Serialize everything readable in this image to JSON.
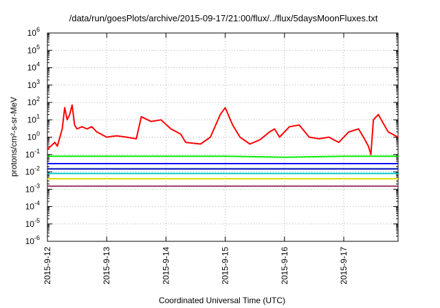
{
  "chart_data": {
    "type": "line",
    "title": "/data/run/goesPlots/archive/2015-09-17/21:00/flux/../flux/5daysMoonFluxes.txt",
    "xlabel": "Coordinated Universal Time (UTC)",
    "ylabel": "protons/cm²-s-sr-MeV",
    "y_scale": "log",
    "ylim": [
      1e-06,
      1000000.0
    ],
    "xlim": [
      "2015-09-12",
      "2015-09-17 22:00"
    ],
    "grid": true,
    "legend": "none",
    "y_ticks": [
      {
        "base": "10",
        "exp": "-6",
        "value": 1e-06
      },
      {
        "base": "10",
        "exp": "-5",
        "value": 1e-05
      },
      {
        "base": "10",
        "exp": "-4",
        "value": 0.0001
      },
      {
        "base": "10",
        "exp": "-3",
        "value": 0.001
      },
      {
        "base": "10",
        "exp": "-2",
        "value": 0.01
      },
      {
        "base": "10",
        "exp": "-1",
        "value": 0.1
      },
      {
        "base": "10",
        "exp": "0",
        "value": 1
      },
      {
        "base": "10",
        "exp": "1",
        "value": 10
      },
      {
        "base": "10",
        "exp": "2",
        "value": 100
      },
      {
        "base": "10",
        "exp": "3",
        "value": 1000
      },
      {
        "base": "10",
        "exp": "4",
        "value": 10000
      },
      {
        "base": "10",
        "exp": "5",
        "value": 100000
      },
      {
        "base": "10",
        "exp": "6",
        "value": 1000000
      }
    ],
    "x_ticks": [
      "2015-9-12",
      "2015-9-13",
      "2015-9-14",
      "2015-9-15",
      "2015-9-16",
      "2015-9-17"
    ],
    "series": [
      {
        "color": "#ff0000",
        "x": [
          "2015-09-12 00:00",
          "2015-09-12 03:00",
          "2015-09-12 04:00",
          "2015-09-12 06:00",
          "2015-09-12 07:00",
          "2015-09-12 08:00",
          "2015-09-12 09:00",
          "2015-09-12 10:00",
          "2015-09-12 11:00",
          "2015-09-12 12:00",
          "2015-09-12 14:00",
          "2015-09-12 16:00",
          "2015-09-12 18:00",
          "2015-09-12 20:00",
          "2015-09-13 00:00",
          "2015-09-13 04:00",
          "2015-09-13 08:00",
          "2015-09-13 12:00",
          "2015-09-13 14:00",
          "2015-09-13 18:00",
          "2015-09-13 22:00",
          "2015-09-14 02:00",
          "2015-09-14 06:00",
          "2015-09-14 08:00",
          "2015-09-14 14:00",
          "2015-09-14 18:00",
          "2015-09-14 22:00",
          "2015-09-15 00:00",
          "2015-09-15 03:00",
          "2015-09-15 06:00",
          "2015-09-15 10:00",
          "2015-09-15 14:00",
          "2015-09-15 18:00",
          "2015-09-15 20:00",
          "2015-09-15 22:00",
          "2015-09-16 02:00",
          "2015-09-16 06:00",
          "2015-09-16 10:00",
          "2015-09-16 14:00",
          "2015-09-16 18:00",
          "2015-09-16 22:00",
          "2015-09-17 02:00",
          "2015-09-17 06:00",
          "2015-09-17 08:00",
          "2015-09-17 10:00",
          "2015-09-17 11:00",
          "2015-09-17 12:00",
          "2015-09-17 14:00",
          "2015-09-17 18:00",
          "2015-09-17 22:00"
        ],
        "y": [
          0.2,
          0.5,
          0.3,
          3,
          50,
          10,
          20,
          70,
          5,
          3,
          4,
          3,
          4,
          2,
          1,
          1.2,
          1,
          0.8,
          15,
          8,
          10,
          3,
          1.5,
          0.5,
          0.4,
          1,
          20,
          50,
          5,
          1,
          0.4,
          0.7,
          2,
          3,
          1,
          4,
          5,
          1,
          0.8,
          1,
          0.5,
          2,
          3,
          1,
          0.3,
          0.1,
          10,
          20,
          2,
          1
        ]
      },
      {
        "color": "#00ee00",
        "x": [
          "2015-09-12 00:00",
          "2015-09-13 00:00",
          "2015-09-14 00:00",
          "2015-09-15 00:00",
          "2015-09-16 00:00",
          "2015-09-17 00:00",
          "2015-09-17 22:00"
        ],
        "y": [
          0.08,
          0.08,
          0.08,
          0.08,
          0.07,
          0.08,
          0.08
        ]
      },
      {
        "color": "#0000ff",
        "x": [
          "2015-09-12 00:00",
          "2015-09-13 00:00",
          "2015-09-14 00:00",
          "2015-09-15 00:00",
          "2015-09-16 00:00",
          "2015-09-17 00:00",
          "2015-09-17 22:00"
        ],
        "y": [
          0.03,
          0.03,
          0.03,
          0.03,
          0.03,
          0.03,
          0.03
        ]
      },
      {
        "color": "#0000bb",
        "x": [
          "2015-09-12 00:00",
          "2015-09-13 00:00",
          "2015-09-14 00:00",
          "2015-09-15 00:00",
          "2015-09-16 00:00",
          "2015-09-17 00:00",
          "2015-09-17 22:00"
        ],
        "y": [
          0.015,
          0.015,
          0.015,
          0.015,
          0.015,
          0.015,
          0.015
        ]
      },
      {
        "color": "#00cccc",
        "x": [
          "2015-09-12 00:00",
          "2015-09-13 00:00",
          "2015-09-14 00:00",
          "2015-09-15 00:00",
          "2015-09-16 00:00",
          "2015-09-17 00:00",
          "2015-09-17 22:00"
        ],
        "y": [
          0.008,
          0.008,
          0.008,
          0.008,
          0.008,
          0.008,
          0.008
        ]
      },
      {
        "color": "#dddd00",
        "x": [
          "2015-09-12 00:00",
          "2015-09-13 00:00",
          "2015-09-14 00:00",
          "2015-09-15 00:00",
          "2015-09-16 00:00",
          "2015-09-17 00:00",
          "2015-09-17 22:00"
        ],
        "y": [
          0.004,
          0.004,
          0.004,
          0.004,
          0.004,
          0.004,
          0.004
        ]
      },
      {
        "color": "#993366",
        "x": [
          "2015-09-12 00:00",
          "2015-09-13 00:00",
          "2015-09-14 00:00",
          "2015-09-15 00:00",
          "2015-09-16 00:00",
          "2015-09-17 00:00",
          "2015-09-17 22:00"
        ],
        "y": [
          0.0015,
          0.0015,
          0.0015,
          0.0015,
          0.0015,
          0.0015,
          0.0015
        ]
      }
    ]
  }
}
